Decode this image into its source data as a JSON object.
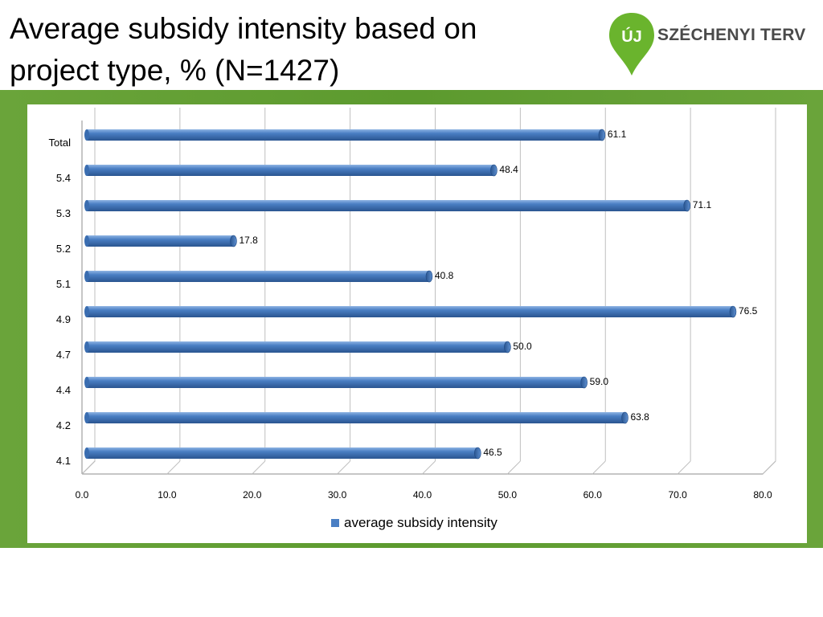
{
  "header": {
    "title": "Average subsidy intensity based on project type, % (N=1427)",
    "logo_badge": "ÚJ",
    "logo_text": "SZÉCHENYI TERV"
  },
  "colors": {
    "bar": "#4a7fc4",
    "bar_dark": "#2a5590",
    "frame_green": "#5f9d30",
    "logo_green": "#6ab42d",
    "grid": "#bfbfbf"
  },
  "chart_data": {
    "type": "bar",
    "orientation": "horizontal",
    "categories": [
      "Total",
      "5.4",
      "5.3",
      "5.2",
      "5.1",
      "4.9",
      "4.7",
      "4.4",
      "4.2",
      "4.1"
    ],
    "series": [
      {
        "name": "average subsidy intensity",
        "values": [
          61.1,
          48.4,
          71.1,
          17.8,
          40.8,
          76.5,
          50.0,
          59.0,
          63.8,
          46.5
        ]
      }
    ],
    "value_labels": [
      "61.1",
      "48.4",
      "71.1",
      "17.8",
      "40.8",
      "76.5",
      "50.0",
      "59.0",
      "63.8",
      "46.5"
    ],
    "x_ticks": [
      "0.0",
      "10.0",
      "20.0",
      "30.0",
      "40.0",
      "50.0",
      "60.0",
      "70.0",
      "80.0"
    ],
    "xlim": [
      0,
      80
    ],
    "grid": true,
    "legend": "bottom"
  }
}
